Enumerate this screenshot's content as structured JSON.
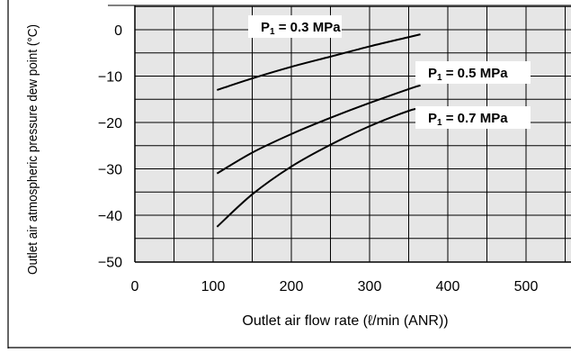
{
  "chart_data": {
    "type": "line",
    "title": "",
    "xlabel": "Outlet air flow rate (ℓ/min (ANR))",
    "ylabel": "Outlet air atmospheric pressure dew point (°C)",
    "xlim": [
      0,
      600
    ],
    "ylim": [
      -50,
      5
    ],
    "x_ticks": [
      "0",
      "100",
      "200",
      "300",
      "400",
      "500"
    ],
    "y_ticks": [
      "0",
      "−10",
      "−20",
      "−30",
      "−40",
      "−50"
    ],
    "grid": true,
    "series": [
      {
        "name": "P₁ = 0.3 MPa",
        "label_main": "P",
        "label_sub": "1",
        "label_rest": " = 0.3 MPa",
        "points": [
          [
            105,
            -13
          ],
          [
            150,
            -10.5
          ],
          [
            200,
            -8
          ],
          [
            250,
            -5.8
          ],
          [
            300,
            -3.6
          ],
          [
            350,
            -1.6
          ],
          [
            365,
            -1
          ]
        ]
      },
      {
        "name": "P₁ = 0.5 MPa",
        "label_main": "P",
        "label_sub": "1",
        "label_rest": " = 0.5 MPa",
        "points": [
          [
            105,
            -31
          ],
          [
            150,
            -26.5
          ],
          [
            200,
            -22.5
          ],
          [
            250,
            -19
          ],
          [
            300,
            -15.8
          ],
          [
            350,
            -12.8
          ],
          [
            365,
            -12
          ]
        ]
      },
      {
        "name": "P₁ = 0.7 MPa",
        "label_main": "P",
        "label_sub": "1",
        "label_rest": " = 0.7 MPa",
        "points": [
          [
            105,
            -42.5
          ],
          [
            150,
            -35.5
          ],
          [
            200,
            -29.5
          ],
          [
            250,
            -24.8
          ],
          [
            300,
            -20.8
          ],
          [
            350,
            -17.5
          ],
          [
            365,
            -17
          ]
        ]
      }
    ]
  }
}
